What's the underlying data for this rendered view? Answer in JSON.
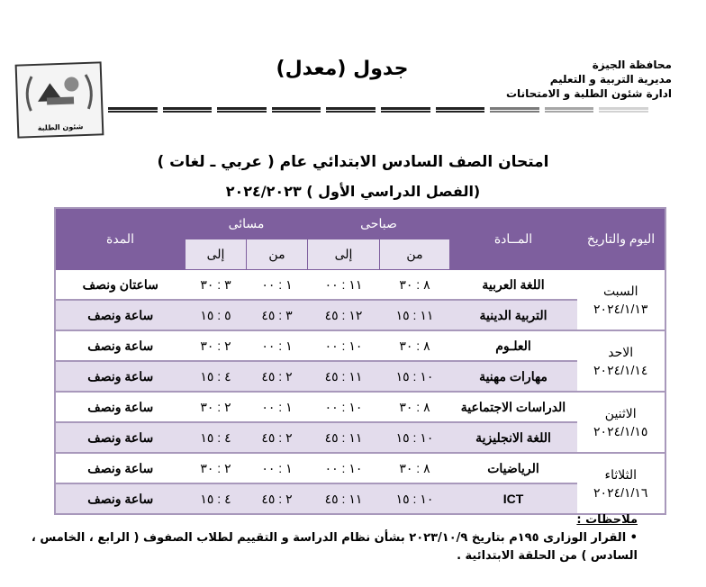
{
  "header": {
    "org_lines": [
      "محافظة الجيزة",
      "مديرية التربية و التعليم",
      "ادارة شئون الطلبة و الامتحانات"
    ],
    "title": "جدول (معدل)",
    "logo_caption": "شئون الطلبة",
    "logo_top": "محافظة الجيزة",
    "logo_mid": "مديرية التربية و التعليم"
  },
  "heading": {
    "line1": "امتحان الصف السادس الابتدائي عام ( عربي ـ لغات )",
    "line2": "(الفصل الدراسي الأول ) ٢٠٢٤/٢٠٢٣"
  },
  "table": {
    "headers": {
      "day": "اليوم والتاريخ",
      "subject": "المــادة",
      "morning": "صباحى",
      "evening": "مسائى",
      "from": "من",
      "to": "إلى",
      "duration": "المدة"
    },
    "days": [
      {
        "day": "السبت",
        "date": "٢٠٢٤/١/١٣",
        "rows": [
          {
            "subject": "اللغة العربية",
            "m_from": "٨ : ٣٠",
            "m_to": "١١ : ٠٠",
            "e_from": "١ : ٠٠",
            "e_to": "٣ : ٣٠",
            "duration": "ساعتان ونصف"
          },
          {
            "subject": "التربية الدينية",
            "m_from": "١١ : ١٥",
            "m_to": "١٢ : ٤٥",
            "e_from": "٣ : ٤٥",
            "e_to": "٥ : ١٥",
            "duration": "ساعة ونصف"
          }
        ]
      },
      {
        "day": "الاحد",
        "date": "٢٠٢٤/١/١٤",
        "rows": [
          {
            "subject": "العلـوم",
            "m_from": "٨ : ٣٠",
            "m_to": "١٠ : ٠٠",
            "e_from": "١ : ٠٠",
            "e_to": "٢ : ٣٠",
            "duration": "ساعة ونصف"
          },
          {
            "subject": "مهارات مهنية",
            "m_from": "١٠ : ١٥",
            "m_to": "١١ : ٤٥",
            "e_from": "٢ : ٤٥",
            "e_to": "٤ : ١٥",
            "duration": "ساعة ونصف"
          }
        ]
      },
      {
        "day": "الاثنين",
        "date": "٢٠٢٤/١/١٥",
        "rows": [
          {
            "subject": "الدراسات الاجتماعية",
            "m_from": "٨ : ٣٠",
            "m_to": "١٠ : ٠٠",
            "e_from": "١ : ٠٠",
            "e_to": "٢ : ٣٠",
            "duration": "ساعة ونصف"
          },
          {
            "subject": "اللغة الانجليزية",
            "m_from": "١٠ : ١٥",
            "m_to": "١١ : ٤٥",
            "e_from": "٢ : ٤٥",
            "e_to": "٤ : ١٥",
            "duration": "ساعة ونصف"
          }
        ]
      },
      {
        "day": "الثلاثاء",
        "date": "٢٠٢٤/١/١٦",
        "rows": [
          {
            "subject": "الرياضيات",
            "m_from": "٨ : ٣٠",
            "m_to": "١٠ : ٠٠",
            "e_from": "١ : ٠٠",
            "e_to": "٢ : ٣٠",
            "duration": "ساعة ونصف"
          },
          {
            "subject": "ICT",
            "m_from": "١٠ : ١٥",
            "m_to": "١١ : ٤٥",
            "e_from": "٢ : ٤٥",
            "e_to": "٤ : ١٥",
            "duration": "ساعة ونصف"
          }
        ]
      }
    ]
  },
  "notes": {
    "label": "ملاحظات :",
    "items": [
      "القرار الوزارى ١٩٥م  بتاريخ ٢٠٢٣/١٠/٩ بشأن نظام الدراسة و التقييم لطلاب الصفوف ( الرابع ، الخامس ، السادس ) من الحلقة الابتدائية ."
    ]
  },
  "colors": {
    "header_purple": "#7e5f9e",
    "row_lilac": "#e3dcec"
  }
}
